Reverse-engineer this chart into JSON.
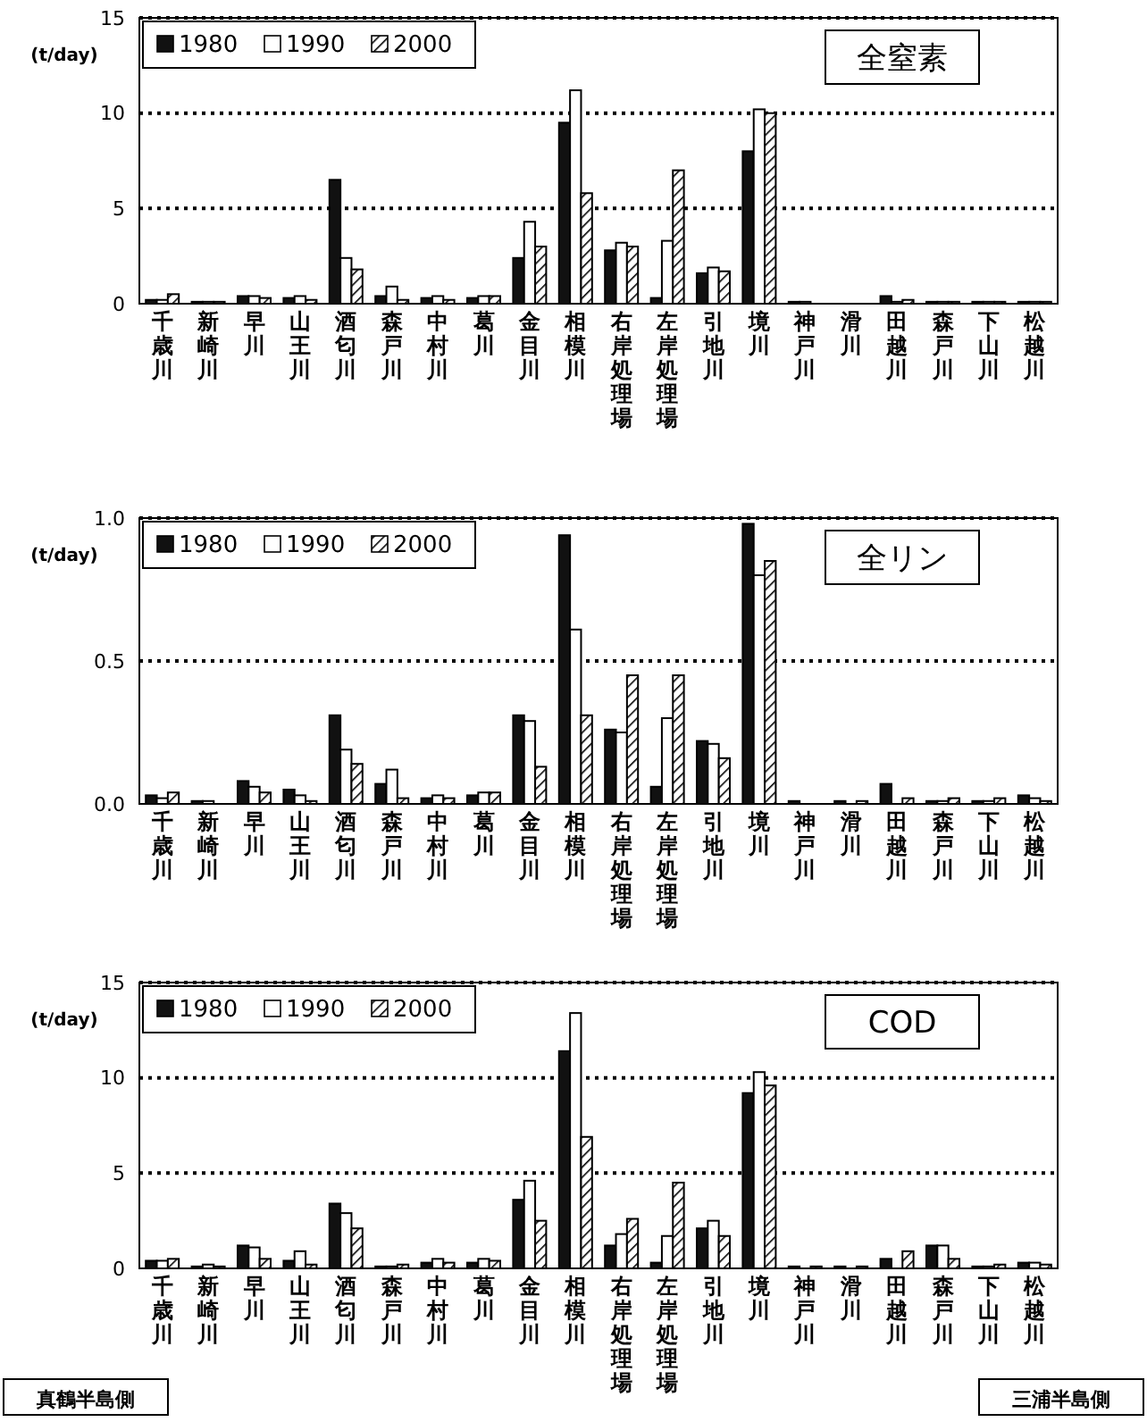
{
  "chart_data": [
    {
      "type": "bar",
      "title": "全窒素",
      "ylabel": "(t/day)",
      "categories": [
        "千歳川",
        "新崎川",
        "早川",
        "山王川",
        "酒匂川",
        "森戸川",
        "中村川",
        "葛川",
        "金目川",
        "相模川",
        "右岸処理場",
        "左岸処理場",
        "引地川",
        "境川",
        "神戸川",
        "滑川",
        "田越川",
        "森戸川",
        "下山川",
        "松越川"
      ],
      "series": [
        {
          "name": "1980",
          "color": "#111111",
          "values": [
            0.2,
            0.1,
            0.4,
            0.3,
            6.5,
            0.4,
            0.3,
            0.3,
            2.4,
            9.5,
            2.8,
            0.3,
            1.6,
            8.0,
            0.1,
            0,
            0.4,
            0.1,
            0.1,
            0.1
          ]
        },
        {
          "name": "1990",
          "color": "#ffffff",
          "values": [
            0.2,
            0.1,
            0.4,
            0.4,
            2.4,
            0.9,
            0.4,
            0.4,
            4.3,
            11.2,
            3.2,
            3.3,
            1.9,
            10.2,
            0.1,
            0,
            0.1,
            0.1,
            0.1,
            0.1
          ]
        },
        {
          "name": "2000",
          "color": "#000000",
          "values": [
            0.5,
            0.1,
            0.3,
            0.2,
            1.8,
            0.2,
            0.2,
            0.4,
            3.0,
            5.8,
            3.0,
            7.0,
            1.7,
            10.0,
            0,
            0,
            0.2,
            0.1,
            0.1,
            0.1
          ]
        }
      ],
      "ylim": [
        0,
        15
      ],
      "yticks": [
        0,
        5,
        10,
        15
      ],
      "grid": "y",
      "legend": "top left"
    },
    {
      "type": "bar",
      "title": "全リン",
      "ylabel": "(t/day)",
      "categories": [
        "千歳川",
        "新崎川",
        "早川",
        "山王川",
        "酒匂川",
        "森戸川",
        "中村川",
        "葛川",
        "金目川",
        "相模川",
        "右岸処理場",
        "左岸処理場",
        "引地川",
        "境川",
        "神戸川",
        "滑川",
        "田越川",
        "森戸川",
        "下山川",
        "松越川"
      ],
      "series": [
        {
          "name": "1980",
          "color": "#111111",
          "values": [
            0.03,
            0.01,
            0.08,
            0.05,
            0.31,
            0.07,
            0.02,
            0.03,
            0.31,
            0.94,
            0.26,
            0.06,
            0.22,
            0.98,
            0.01,
            0.01,
            0.07,
            0.01,
            0.01,
            0.03
          ]
        },
        {
          "name": "1990",
          "color": "#ffffff",
          "values": [
            0.02,
            0.01,
            0.06,
            0.03,
            0.19,
            0.12,
            0.03,
            0.04,
            0.29,
            0.61,
            0.25,
            0.3,
            0.21,
            0.8,
            0,
            0,
            0,
            0.01,
            0.01,
            0.02
          ]
        },
        {
          "name": "2000",
          "color": "#000000",
          "values": [
            0.04,
            0,
            0.04,
            0.01,
            0.14,
            0.02,
            0.02,
            0.04,
            0.13,
            0.31,
            0.45,
            0.45,
            0.16,
            0.85,
            0,
            0.01,
            0.02,
            0.02,
            0.02,
            0.01
          ]
        }
      ],
      "ylim": [
        0,
        1
      ],
      "yticks": [
        {
          "value": 0,
          "label": "0.0"
        },
        0.5,
        {
          "value": 1,
          "label": "1.0"
        }
      ],
      "grid": "y",
      "legend": "top left"
    },
    {
      "type": "bar",
      "title": "COD",
      "ylabel": "(t/day)",
      "categories": [
        "千歳川",
        "新崎川",
        "早川",
        "山王川",
        "酒匂川",
        "森戸川",
        "中村川",
        "葛川",
        "金目川",
        "相模川",
        "右岸処理場",
        "左岸処理場",
        "引地川",
        "境川",
        "神戸川",
        "滑川",
        "田越川",
        "森戸川",
        "下山川",
        "松越川"
      ],
      "series": [
        {
          "name": "1980",
          "color": "#111111",
          "values": [
            0.4,
            0.1,
            1.2,
            0.4,
            3.4,
            0.1,
            0.3,
            0.3,
            3.6,
            11.4,
            1.2,
            0.3,
            2.1,
            9.2,
            0.1,
            0.1,
            0.5,
            1.2,
            0.1,
            0.3
          ]
        },
        {
          "name": "1990",
          "color": "#ffffff",
          "values": [
            0.4,
            0.2,
            1.1,
            0.9,
            2.9,
            0.1,
            0.5,
            0.5,
            4.6,
            13.4,
            1.8,
            1.7,
            2.5,
            10.3,
            0,
            0,
            0,
            1.2,
            0.1,
            0.3
          ]
        },
        {
          "name": "2000",
          "color": "#000000",
          "values": [
            0.5,
            0.1,
            0.5,
            0.2,
            2.1,
            0.2,
            0.3,
            0.4,
            2.5,
            6.9,
            2.6,
            4.5,
            1.7,
            9.6,
            0.1,
            0.1,
            0.9,
            0.5,
            0.2,
            0.2
          ]
        }
      ],
      "ylim": [
        0,
        15
      ],
      "yticks": [
        0,
        5,
        10,
        15
      ],
      "grid": "y",
      "legend": "top left",
      "annotations": [
        "真鶴半島側",
        "三浦半島側"
      ]
    }
  ]
}
